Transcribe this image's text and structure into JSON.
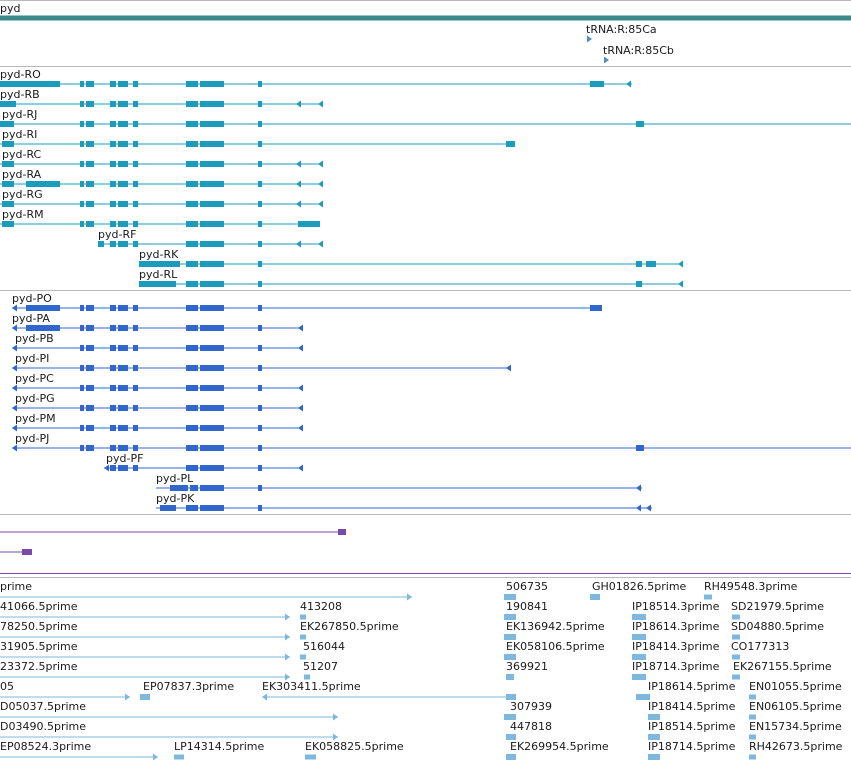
{
  "gene": {
    "name": "pyd"
  },
  "colors": {
    "gene": "#3a8a8a",
    "mrna": "#1b9cbd",
    "protein": "#2f67cf",
    "other": "#7a4aa8",
    "est": "#7fb8de",
    "separator": "#b8b8b8"
  },
  "trna": [
    {
      "label": "tRNA:R:85Ca"
    },
    {
      "label": "tRNA:R:85Cb"
    }
  ],
  "transcripts": [
    {
      "label": "pyd-RO"
    },
    {
      "label": "pyd-RB"
    },
    {
      "label": "pyd-RJ"
    },
    {
      "label": "pyd-RI"
    },
    {
      "label": "pyd-RC"
    },
    {
      "label": "pyd-RA"
    },
    {
      "label": "pyd-RG"
    },
    {
      "label": "pyd-RM"
    },
    {
      "label": "pyd-RF"
    },
    {
      "label": "pyd-RK"
    },
    {
      "label": "pyd-RL"
    }
  ],
  "proteins": [
    {
      "label": "pyd-PO"
    },
    {
      "label": "pyd-PA"
    },
    {
      "label": "pyd-PB"
    },
    {
      "label": "pyd-PI"
    },
    {
      "label": "pyd-PC"
    },
    {
      "label": "pyd-PG"
    },
    {
      "label": "pyd-PM"
    },
    {
      "label": "pyd-PJ"
    },
    {
      "label": "pyd-PF"
    },
    {
      "label": "pyd-PL"
    },
    {
      "label": "pyd-PK"
    }
  ],
  "est_labels": [
    [
      "prime",
      "506735",
      "GH01826.5prime",
      "RH49548.3prime"
    ],
    [
      "41066.5prime",
      "413208",
      "190841",
      "IP18514.3prime",
      "SD21979.5prime"
    ],
    [
      "78250.5prime",
      "EK267850.5prime",
      "EK136942.5prime",
      "IP18614.3prime",
      "SD04880.5prime"
    ],
    [
      "31905.5prime",
      "516044",
      "EK058106.5prime",
      "IP18414.3prime",
      "CO177313"
    ],
    [
      "23372.5prime",
      "51207",
      "369921",
      "IP18714.3prime",
      "EK267155.5prime"
    ],
    [
      "05",
      "EP07837.3prime",
      "EK303411.5prime",
      "IP18614.5prime",
      "EN01055.5prime"
    ],
    [
      "D05037.5prime",
      "307939",
      "IP18414.5prime",
      "EN06105.5prime"
    ],
    [
      "D03490.5prime",
      "447818",
      "IP18514.5prime",
      "EN15734.5prime"
    ],
    [
      "EP08524.3prime",
      "LP14314.5prime",
      "EK058825.5prime",
      "EK269954.5prime",
      "IP18714.5prime",
      "RH42673.5prime"
    ]
  ]
}
